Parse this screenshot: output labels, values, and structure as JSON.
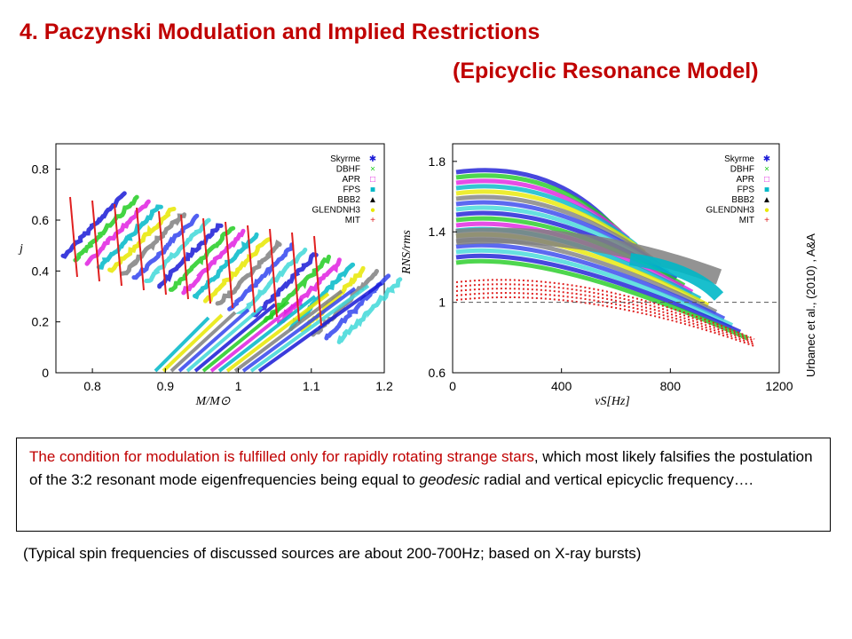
{
  "slide": {
    "title_line1": "4. Paczynski Modulation and Implied Restrictions",
    "title_line2": "(Epicyclic Resonance Model)",
    "credit": "Urbanec et al., (2010) , A&A",
    "box_text_red": "The condition for modulation is fulfilled only for rapidly rotating strange stars",
    "box_text_rest1": ", which most likely falsifies the postulation of the 3:2 resonant mode eigenfrequencies being equal to ",
    "box_text_italic": "geodesic",
    "box_text_rest2": " radial and vertical epicyclic frequency….",
    "note": "(Typical spin frequencies of discussed sources are about 200-700Hz; based on X-ray bursts)"
  },
  "legend_entries": [
    {
      "name": "Skyrme",
      "color": "#1a1ad6",
      "marker": "✱"
    },
    {
      "name": "DBHF",
      "color": "#22cc22",
      "marker": "×"
    },
    {
      "name": "APR",
      "color": "#e020e0",
      "marker": "□"
    },
    {
      "name": "FPS",
      "color": "#00b8c8",
      "marker": "■"
    },
    {
      "name": "BBB2",
      "color": "#000000",
      "marker": "▲"
    },
    {
      "name": "GLENDNH3",
      "color": "#e8e800",
      "marker": "●"
    },
    {
      "name": "MIT",
      "color": "#e02020",
      "marker": "+"
    }
  ],
  "chart_data": [
    {
      "type": "scatter",
      "xlabel": "M/M⊙",
      "ylabel": "j",
      "xlim": [
        0.75,
        1.2
      ],
      "ylim": [
        0,
        0.9
      ],
      "xticks": [
        "0.8",
        "0.9",
        "1",
        "1.1",
        "1.2"
      ],
      "yticks": [
        "0",
        "0.2",
        "0.4",
        "0.6",
        "0.8"
      ],
      "legend_placement": "top-right",
      "grid": false
    },
    {
      "type": "scatter",
      "xlabel": "νS[Hz]",
      "ylabel": "RNS/rms",
      "xlim": [
        0,
        1200
      ],
      "ylim": [
        0.6,
        1.9
      ],
      "xticks": [
        "0",
        "400",
        "800",
        "1200"
      ],
      "yticks": [
        "0.6",
        "1",
        "1.4",
        "1.8"
      ],
      "reference_line_y": 1,
      "legend_placement": "top-right",
      "grid": false
    }
  ]
}
